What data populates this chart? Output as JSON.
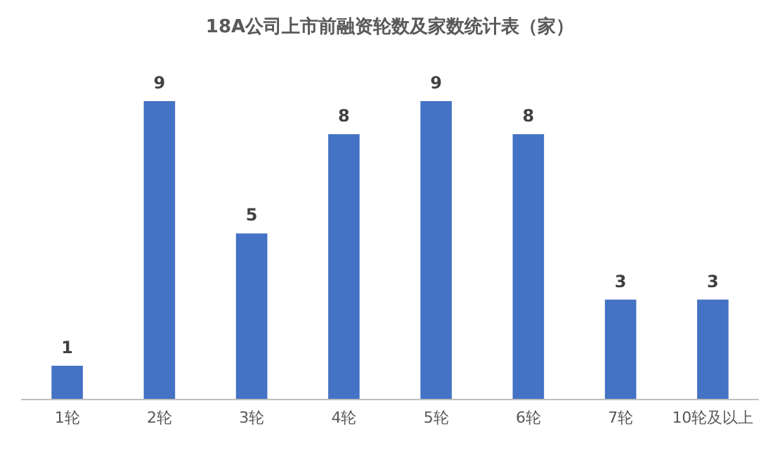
{
  "chart_data": {
    "type": "bar",
    "title": "18A公司上市前融资轮数及家数统计表（家）",
    "categories": [
      "1轮",
      "2轮",
      "3轮",
      "4轮",
      "5轮",
      "6轮",
      "7轮",
      "10轮及以上"
    ],
    "values": [
      1,
      9,
      5,
      8,
      9,
      8,
      3,
      3
    ],
    "color": "#4472c4",
    "data_labels": true
  }
}
